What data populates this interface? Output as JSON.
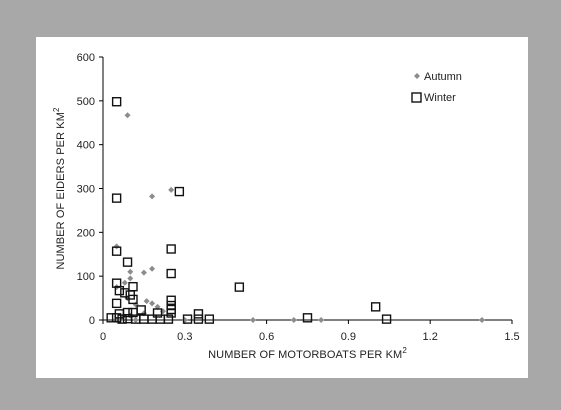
{
  "chart_data": {
    "type": "scatter",
    "title": "",
    "xlabel": "NUMBER OF MOTORBOATS PER KM",
    "xlabel_sup": "2",
    "ylabel": "NUMBER OF EIDERS PER KM",
    "ylabel_sup": "2",
    "xlim": [
      0,
      1.5
    ],
    "ylim": [
      0,
      600
    ],
    "xticks": [
      "0",
      "0.3",
      "0.6",
      "0.9",
      "1.2",
      "1.5"
    ],
    "xtick_values": [
      0,
      0.3,
      0.6,
      0.9,
      1.2,
      1.5
    ],
    "yticks": [
      "0",
      "100",
      "200",
      "300",
      "400",
      "500",
      "600"
    ],
    "ytick_values": [
      0,
      100,
      200,
      300,
      400,
      500,
      600
    ],
    "grid": false,
    "legend_position": "top-right",
    "series": [
      {
        "name": "Autumn",
        "marker": "diamond",
        "color": "#8c8c8c",
        "points": [
          [
            0.09,
            467
          ],
          [
            0.25,
            297
          ],
          [
            0.18,
            282
          ],
          [
            0.05,
            168
          ],
          [
            0.1,
            110
          ],
          [
            0.15,
            108
          ],
          [
            0.18,
            117
          ],
          [
            0.1,
            95
          ],
          [
            0.08,
            85
          ],
          [
            0.05,
            75
          ],
          [
            0.09,
            50
          ],
          [
            0.12,
            35
          ],
          [
            0.16,
            43
          ],
          [
            0.18,
            38
          ],
          [
            0.2,
            30
          ],
          [
            0.22,
            20
          ],
          [
            0.15,
            15
          ],
          [
            0.1,
            10
          ],
          [
            0.07,
            5
          ],
          [
            0.05,
            0
          ],
          [
            0.12,
            0
          ],
          [
            0.3,
            0
          ],
          [
            0.55,
            0
          ],
          [
            0.7,
            0
          ],
          [
            0.8,
            0
          ],
          [
            1.39,
            0
          ]
        ]
      },
      {
        "name": "Winter",
        "marker": "square",
        "color": "#111111",
        "points": [
          [
            0.05,
            498
          ],
          [
            0.05,
            278
          ],
          [
            0.28,
            293
          ],
          [
            0.25,
            162
          ],
          [
            0.05,
            157
          ],
          [
            0.09,
            132
          ],
          [
            0.25,
            106
          ],
          [
            0.05,
            84
          ],
          [
            0.11,
            76
          ],
          [
            0.06,
            67
          ],
          [
            0.1,
            57
          ],
          [
            0.08,
            62
          ],
          [
            0.11,
            47
          ],
          [
            0.05,
            38
          ],
          [
            0.5,
            75
          ],
          [
            0.25,
            45
          ],
          [
            0.25,
            33
          ],
          [
            1.0,
            30
          ],
          [
            0.14,
            23
          ],
          [
            0.25,
            24
          ],
          [
            0.09,
            17
          ],
          [
            0.11,
            17
          ],
          [
            0.2,
            16
          ],
          [
            0.25,
            16
          ],
          [
            0.35,
            14
          ],
          [
            0.06,
            14
          ],
          [
            0.03,
            5
          ],
          [
            0.05,
            5
          ],
          [
            0.07,
            2
          ],
          [
            0.09,
            3
          ],
          [
            0.12,
            2
          ],
          [
            0.15,
            2
          ],
          [
            0.18,
            2
          ],
          [
            0.21,
            2
          ],
          [
            0.24,
            2
          ],
          [
            0.31,
            2
          ],
          [
            0.35,
            2
          ],
          [
            0.39,
            2
          ],
          [
            0.75,
            5
          ],
          [
            1.04,
            2
          ]
        ]
      }
    ]
  }
}
